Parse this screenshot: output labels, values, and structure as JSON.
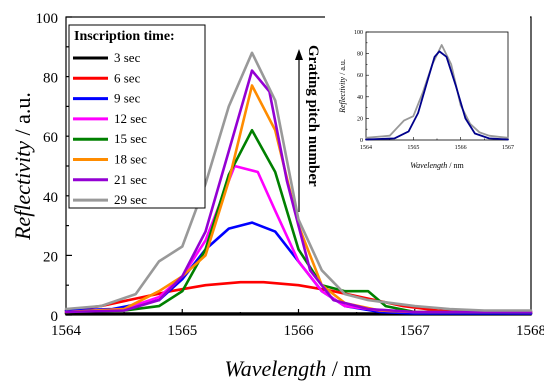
{
  "chart_data": [
    {
      "type": "line",
      "xlabel_italic": "Wavelength",
      "xlabel_unit": " / nm",
      "ylabel_italic": "Reflectivity",
      "ylabel_unit": " / a.u.",
      "xlim": [
        1564,
        1568
      ],
      "ylim": [
        0,
        100
      ],
      "xticks": [
        "1564",
        "1565",
        "1566",
        "1567",
        "1568"
      ],
      "yticks": [
        "0",
        "20",
        "40",
        "60",
        "80",
        "100"
      ],
      "legend_title": "Inscription time:",
      "legend_placement": "top-left",
      "annotation": "Grating pitch number",
      "grid": false,
      "series": [
        {
          "name": "3 sec",
          "color": "#000000",
          "x": [
            1564,
            1565,
            1565.5,
            1566,
            1566.5,
            1567,
            1568
          ],
          "y": [
            0.5,
            0.5,
            0.5,
            0.5,
            0.5,
            0.5,
            0.5
          ]
        },
        {
          "name": "6 sec",
          "color": "#ff0000",
          "x": [
            1564,
            1564.3,
            1564.6,
            1564.9,
            1565.2,
            1565.5,
            1565.7,
            1566.0,
            1566.3,
            1566.6,
            1566.9,
            1567.2,
            1567.5,
            1568
          ],
          "y": [
            1.5,
            3,
            5.5,
            8,
            10,
            11,
            11,
            10,
            8,
            5.5,
            3,
            1.5,
            0.7,
            0.5
          ]
        },
        {
          "name": "9 sec",
          "color": "#0000ff",
          "x": [
            1564,
            1564.4,
            1564.8,
            1565.0,
            1565.2,
            1565.4,
            1565.6,
            1565.8,
            1566.0,
            1566.2,
            1566.4,
            1566.7,
            1567,
            1568
          ],
          "y": [
            1.5,
            2,
            5,
            12,
            22,
            29,
            31,
            28,
            18,
            8,
            3,
            1,
            0.5,
            0.5
          ]
        },
        {
          "name": "12 sec",
          "color": "#ff00ff",
          "x": [
            1564,
            1564.5,
            1564.8,
            1565.0,
            1565.2,
            1565.35,
            1565.45,
            1565.55,
            1565.65,
            1565.8,
            1566.0,
            1566.2,
            1566.4,
            1566.7,
            1567,
            1568
          ],
          "y": [
            1,
            2,
            6,
            13,
            25,
            40,
            50,
            49,
            48,
            35,
            18,
            8,
            3,
            1.5,
            1,
            1
          ]
        },
        {
          "name": "15 sec",
          "color": "#008000",
          "x": [
            1564,
            1564.5,
            1564.8,
            1565.0,
            1565.2,
            1565.4,
            1565.6,
            1565.8,
            1566.0,
            1566.2,
            1566.4,
            1566.6,
            1566.75,
            1567,
            1568
          ],
          "y": [
            1,
            1.5,
            3,
            8,
            22,
            47,
            62,
            48,
            22,
            10,
            8,
            8,
            3,
            1,
            1
          ]
        },
        {
          "name": "18 sec",
          "color": "#ff8c00",
          "x": [
            1564,
            1564.5,
            1564.8,
            1565.0,
            1565.2,
            1565.4,
            1565.6,
            1565.8,
            1566.0,
            1566.2,
            1566.4,
            1566.7,
            1567,
            1568
          ],
          "y": [
            1,
            2,
            8,
            13,
            20,
            45,
            77,
            62,
            30,
            10,
            4,
            1.5,
            1,
            1
          ]
        },
        {
          "name": "21 sec",
          "color": "#9400d3",
          "x": [
            1564,
            1564.5,
            1564.8,
            1565.0,
            1565.2,
            1565.4,
            1565.6,
            1565.75,
            1565.9,
            1566.1,
            1566.3,
            1566.6,
            1567,
            1568
          ],
          "y": [
            1,
            1.5,
            5,
            13,
            28,
            55,
            82,
            75,
            45,
            15,
            5,
            2,
            1,
            1
          ]
        },
        {
          "name": "29 sec",
          "color": "#999999",
          "x": [
            1564,
            1564.3,
            1564.6,
            1564.8,
            1565.0,
            1565.2,
            1565.4,
            1565.6,
            1565.8,
            1566.0,
            1566.2,
            1566.4,
            1566.6,
            1566.8,
            1567.0,
            1567.3,
            1567.6,
            1568
          ],
          "y": [
            2,
            3,
            7,
            18,
            23,
            44,
            70,
            88,
            72,
            32,
            15,
            7,
            5,
            4,
            3,
            2,
            1.5,
            1.5
          ]
        }
      ]
    },
    {
      "type": "line",
      "role": "inset",
      "xlabel_italic": "Wavelength",
      "xlabel_unit": " / nm",
      "ylabel_italic": "Reflectivity",
      "ylabel_unit": " / a.u.",
      "xlim": [
        1564,
        1567
      ],
      "ylim": [
        0,
        100
      ],
      "xticks": [
        "1564",
        "1565",
        "1566",
        "1567"
      ],
      "yticks": [
        "0",
        "20",
        "40",
        "60",
        "80",
        "100"
      ],
      "series": [
        {
          "color": "#999999",
          "x": [
            1564,
            1564.5,
            1564.8,
            1565.0,
            1565.2,
            1565.4,
            1565.6,
            1565.8,
            1566.0,
            1566.2,
            1566.4,
            1566.6,
            1566.8,
            1567
          ],
          "y": [
            2,
            4,
            18,
            22,
            44,
            70,
            88,
            70,
            32,
            15,
            7,
            4,
            3,
            2
          ]
        },
        {
          "color": "#00008b",
          "x": [
            1564,
            1564.6,
            1564.9,
            1565.1,
            1565.3,
            1565.45,
            1565.55,
            1565.7,
            1565.9,
            1566.1,
            1566.3,
            1566.6,
            1567
          ],
          "y": [
            0.5,
            1.5,
            8,
            25,
            55,
            77,
            82,
            77,
            50,
            20,
            6,
            1.5,
            0.5
          ]
        }
      ]
    }
  ]
}
